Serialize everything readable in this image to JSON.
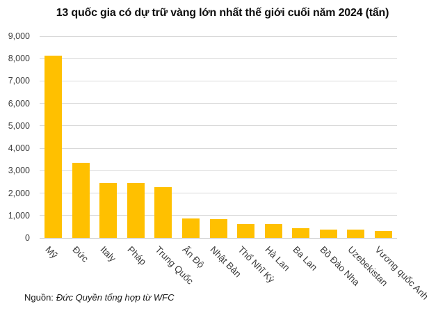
{
  "title": "13 quốc gia có dự trữ vàng lớn nhất thế giới cuối năm 2024 (tấn)",
  "source": {
    "label": "Nguồn:",
    "text": "Đức Quyền tổng hợp từ WFC"
  },
  "colors": {
    "bar": "#ffc000",
    "gridline": "#d9d9d9",
    "axis_text": "#3b3b3b",
    "title_text": "#0d0d0d"
  },
  "chart_data": {
    "type": "bar",
    "title": "13 quốc gia có dự trữ vàng lớn nhất thế giới cuối năm 2024 (tấn)",
    "categories": [
      "Mỹ",
      "Đức",
      "Italy",
      "Pháp",
      "Trung Quốc",
      "Ấn Độ",
      "Nhật Bản",
      "Thổ Nhĩ Kỳ",
      "Hà Lan",
      "Ba Lan",
      "Bồ Đào Nha",
      "Uzebekistan",
      "Vương quốc Anh"
    ],
    "values": [
      8133,
      3352,
      2452,
      2437,
      2280,
      876,
      846,
      615,
      612,
      448,
      383,
      375,
      310
    ],
    "unit": "tấn",
    "xlabel": "",
    "ylabel": "",
    "ylim": [
      0,
      9000
    ],
    "ytick_step": 1000,
    "ytick_labels": [
      "0",
      "1,000",
      "2,000",
      "3,000",
      "4,000",
      "5,000",
      "6,000",
      "7,000",
      "8,000",
      "9,000"
    ],
    "grid": true,
    "legend": false,
    "bar_color": "#ffc000",
    "source": "Nguồn: Đức Quyền tổng hợp từ WFC"
  }
}
